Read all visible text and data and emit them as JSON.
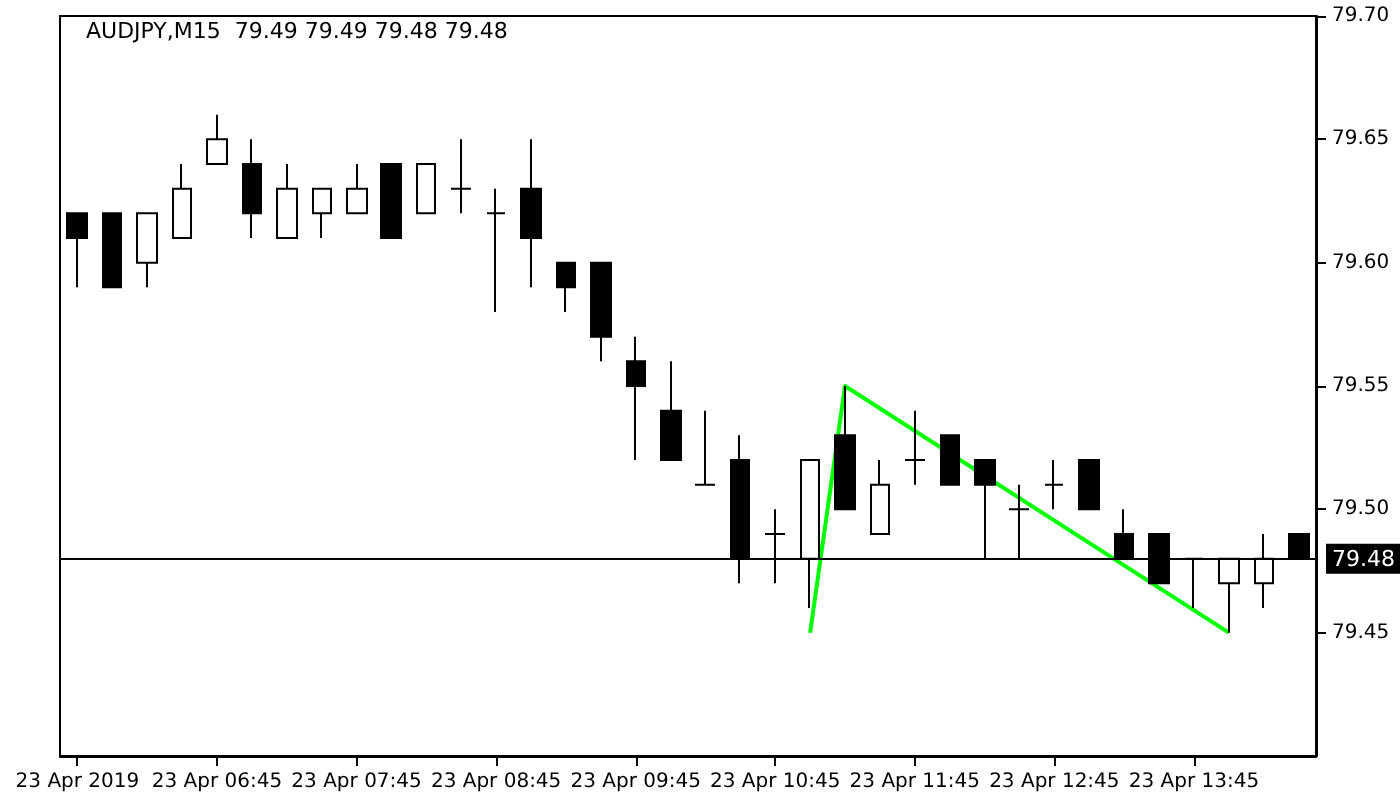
{
  "chart_data": {
    "type": "candlestick",
    "title": "AUDJPY,M15  79.49 79.49 79.48 79.48",
    "categories": [
      "23 Apr 2019",
      null,
      null,
      null,
      "23 Apr 06:45",
      null,
      null,
      null,
      "23 Apr 07:45",
      null,
      null,
      null,
      "23 Apr 08:45",
      null,
      null,
      null,
      "23 Apr 09:45",
      null,
      null,
      null,
      "23 Apr 10:45",
      null,
      null,
      null,
      "23 Apr 11:45",
      null,
      null,
      null,
      "23 Apr 12:45",
      null,
      null,
      null,
      "23 Apr 13:45",
      null,
      null,
      null
    ],
    "color": "#000000",
    "ohlc": [
      [
        79.62,
        79.62,
        79.59,
        79.61
      ],
      [
        79.62,
        79.62,
        79.59,
        79.59
      ],
      [
        79.6,
        79.62,
        79.59,
        79.62
      ],
      [
        79.61,
        79.64,
        79.61,
        79.63
      ],
      [
        79.64,
        79.66,
        79.64,
        79.65
      ],
      [
        79.64,
        79.65,
        79.61,
        79.62
      ],
      [
        79.61,
        79.64,
        79.61,
        79.63
      ],
      [
        79.62,
        79.63,
        79.61,
        79.63
      ],
      [
        79.62,
        79.64,
        79.62,
        79.63
      ],
      [
        79.64,
        79.64,
        79.61,
        79.61
      ],
      [
        79.62,
        79.64,
        79.62,
        79.64
      ],
      [
        79.63,
        79.65,
        79.62,
        79.63
      ],
      [
        79.62,
        79.63,
        79.58,
        79.62
      ],
      [
        79.63,
        79.65,
        79.59,
        79.61
      ],
      [
        79.6,
        79.6,
        79.58,
        79.59
      ],
      [
        79.6,
        79.6,
        79.56,
        79.57
      ],
      [
        79.56,
        79.57,
        79.52,
        79.55
      ],
      [
        79.54,
        79.56,
        79.52,
        79.52
      ],
      [
        79.51,
        79.54,
        79.51,
        79.51
      ],
      [
        79.52,
        79.53,
        79.47,
        79.48
      ],
      [
        79.49,
        79.5,
        79.47,
        79.49
      ],
      [
        79.48,
        79.52,
        79.46,
        79.52
      ],
      [
        79.53,
        79.55,
        79.5,
        79.5
      ],
      [
        79.49,
        79.52,
        79.49,
        79.51
      ],
      [
        79.52,
        79.54,
        79.51,
        79.52
      ],
      [
        79.53,
        79.53,
        79.51,
        79.51
      ],
      [
        79.52,
        79.52,
        79.48,
        79.51
      ],
      [
        79.5,
        79.51,
        79.48,
        79.5
      ],
      [
        79.51,
        79.52,
        79.5,
        79.51
      ],
      [
        79.52,
        79.52,
        79.5,
        79.5
      ],
      [
        79.49,
        79.5,
        79.48,
        79.48
      ],
      [
        79.49,
        79.49,
        79.47,
        79.47
      ],
      [
        79.48,
        79.48,
        79.46,
        79.48
      ],
      [
        79.47,
        79.48,
        79.45,
        79.48
      ],
      [
        79.47,
        79.49,
        79.46,
        79.48
      ],
      [
        79.49,
        79.49,
        79.48,
        79.48
      ]
    ],
    "series": [
      {
        "type": "line",
        "color": "#00ff00",
        "values": [
          null,
          null,
          null,
          null,
          null,
          null,
          null,
          null,
          null,
          null,
          null,
          null,
          null,
          null,
          null,
          null,
          null,
          null,
          null,
          null,
          null,
          79.45,
          79.55,
          null,
          null,
          null,
          null,
          null,
          null,
          null,
          null,
          null,
          null,
          79.45,
          null,
          null
        ]
      }
    ],
    "marker": "none",
    "line_style": "solid",
    "ylim": [
      79.4,
      79.7
    ],
    "yticks": [
      {
        "value": 79.45,
        "label": "79.45"
      },
      {
        "value": 79.5,
        "label": "79.50"
      },
      {
        "value": 79.55,
        "label": "79.55"
      },
      {
        "value": 79.6,
        "label": "79.60"
      },
      {
        "value": 79.65,
        "label": "79.65"
      },
      {
        "value": 79.7,
        "label": "79.70"
      }
    ],
    "ref_lines": [
      {
        "axis": "y",
        "value": 79.48,
        "label": "79.48",
        "color": "#000000"
      }
    ],
    "grid": false
  }
}
